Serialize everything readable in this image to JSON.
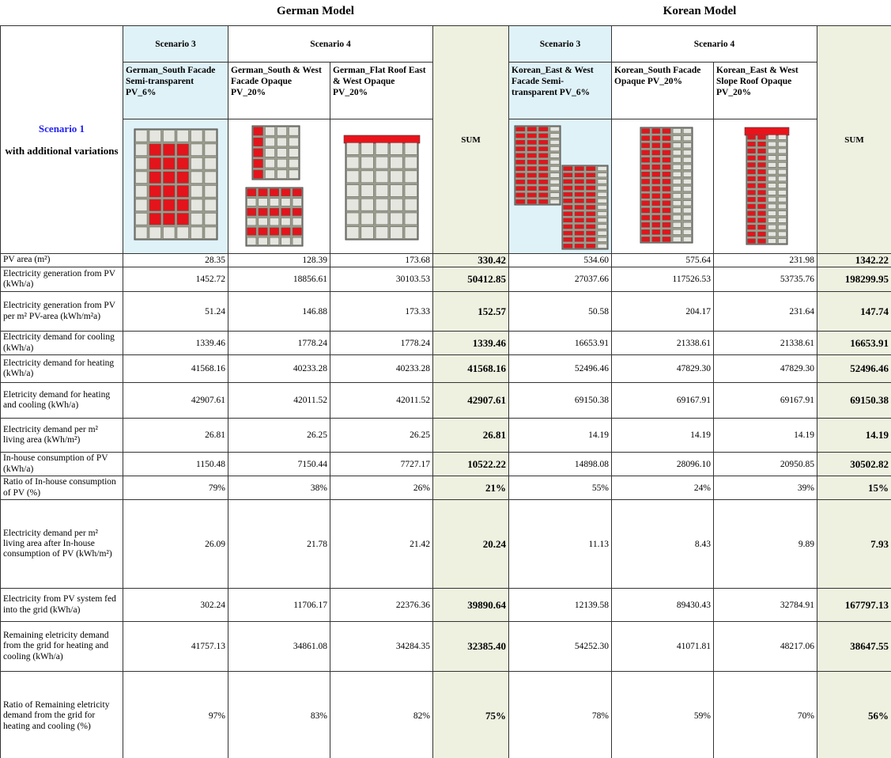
{
  "group_headers": [
    "German Model",
    "Korean Model"
  ],
  "corner": {
    "title": "Scenario 1",
    "subtitle": "with additional variations"
  },
  "groups": [
    {
      "scenarios": [
        "Scenario 3",
        "Scenario 4"
      ],
      "columns": [
        "German_South Facade Semi-transparent PV_6%",
        "German_South & West Facade Opaque PV_20%",
        "German_Flat Roof East & West Opaque PV_20%"
      ],
      "sum_label": "SUM"
    },
    {
      "scenarios": [
        "Scenario 3",
        "Scenario 4"
      ],
      "columns": [
        "Korean_East & West Facade Semi-transparent PV_6%",
        "Korean_South Facade Opaque PV_20%",
        "Korean_East & West Slope Roof Opaque PV_20%"
      ],
      "sum_label": "SUM"
    }
  ],
  "rows": [
    {
      "label": "PV area (m²)",
      "values": [
        "28.35",
        "128.39",
        "173.68",
        "330.42",
        "534.60",
        "575.64",
        "231.98",
        "1342.22"
      ]
    },
    {
      "label": "Electricity generation from PV (kWh/a)",
      "values": [
        "1452.72",
        "18856.61",
        "30103.53",
        "50412.85",
        "27037.66",
        "117526.53",
        "53735.76",
        "198299.95"
      ]
    },
    {
      "label": "Electricity generation from PV per m² PV-area (kWh/m²a)",
      "values": [
        "51.24",
        "146.88",
        "173.33",
        "152.57",
        "50.58",
        "204.17",
        "231.64",
        "147.74"
      ]
    },
    {
      "label": "Electricity demand for cooling (kWh/a)",
      "values": [
        "1339.46",
        "1778.24",
        "1778.24",
        "1339.46",
        "16653.91",
        "21338.61",
        "21338.61",
        "16653.91"
      ]
    },
    {
      "label": "Electricity demand for heating (kWh/a)",
      "values": [
        "41568.16",
        "40233.28",
        "40233.28",
        "41568.16",
        "52496.46",
        "47829.30",
        "47829.30",
        "52496.46"
      ]
    },
    {
      "label": "Eletricity demand for heating and cooling (kWh/a)",
      "values": [
        "42907.61",
        "42011.52",
        "42011.52",
        "42907.61",
        "69150.38",
        "69167.91",
        "69167.91",
        "69150.38"
      ]
    },
    {
      "label": "Electricity demand per m² living area (kWh/m²)",
      "values": [
        "26.81",
        "26.25",
        "26.25",
        "26.81",
        "14.19",
        "14.19",
        "14.19",
        "14.19"
      ]
    },
    {
      "label": "In-house consumption of PV (kWh/a)",
      "values": [
        "1150.48",
        "7150.44",
        "7727.17",
        "10522.22",
        "14898.08",
        "28096.10",
        "20950.85",
        "30502.82"
      ]
    },
    {
      "label": "Ratio of In-house consumption of PV (%)",
      "values": [
        "79%",
        "38%",
        "26%",
        "21%",
        "55%",
        "24%",
        "39%",
        "15%"
      ]
    },
    {
      "label": "Electricity demand per m² living area after In-house consumption of PV (kWh/m²)",
      "values": [
        "26.09",
        "21.78",
        "21.42",
        "20.24",
        "11.13",
        "8.43",
        "9.89",
        "7.93"
      ]
    },
    {
      "label": "Electricity from PV system fed into the grid (kWh/a)",
      "values": [
        "302.24",
        "11706.17",
        "22376.36",
        "39890.64",
        "12139.58",
        "89430.43",
        "32784.91",
        "167797.13"
      ]
    },
    {
      "label": "Remaining eletricity demand from the grid for heating and cooling (kWh/a)",
      "values": [
        "41757.13",
        "34861.08",
        "34284.35",
        "32385.40",
        "54252.30",
        "41071.81",
        "48217.06",
        "38647.55"
      ]
    },
    {
      "label": "Ratio of Remaining eletricity demand from the grid for heating and cooling (%)",
      "values": [
        "97%",
        "83%",
        "82%",
        "75%",
        "78%",
        "59%",
        "70%",
        "56%"
      ]
    }
  ]
}
